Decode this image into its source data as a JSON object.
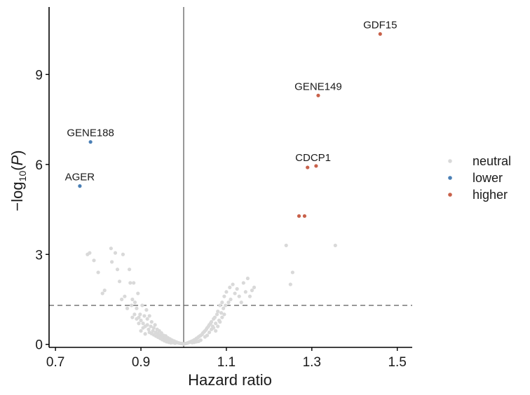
{
  "chart_data": {
    "type": "scatter",
    "xlabel": "Hazard ratio",
    "ylabel_base": "−log",
    "ylabel_sub": "10",
    "ylabel_var": "P",
    "xlim": [
      0.685,
      1.535
    ],
    "ylim": [
      -0.1,
      11.25
    ],
    "x_ticks": [
      0.7,
      0.9,
      1.1,
      1.3,
      1.5
    ],
    "x_tick_labels": [
      "0.7",
      "0.9",
      "1.1",
      "1.3",
      "1.5"
    ],
    "y_ticks": [
      0,
      3,
      6,
      9
    ],
    "y_tick_labels": [
      "0",
      "3",
      "6",
      "9"
    ],
    "vline_x": 1.0,
    "hline_y": 1.3,
    "grid": false,
    "legend_position": "right",
    "colors": {
      "neutral": "#d9d9d9",
      "lower": "#4a7fb5",
      "higher": "#c8614a",
      "vline": "#7f7f7f",
      "hline": "#6b6b6b",
      "axis": "#000000"
    },
    "series": [
      {
        "name": "neutral",
        "color": "#d9d9d9",
        "points": [
          [
            0.775,
            3.0
          ],
          [
            0.78,
            3.05
          ],
          [
            0.79,
            2.8
          ],
          [
            0.8,
            2.4
          ],
          [
            0.81,
            1.7
          ],
          [
            0.815,
            1.8
          ],
          [
            0.83,
            3.2
          ],
          [
            0.832,
            2.75
          ],
          [
            0.84,
            3.05
          ],
          [
            0.845,
            2.5
          ],
          [
            0.85,
            2.1
          ],
          [
            0.855,
            1.5
          ],
          [
            0.858,
            3.0
          ],
          [
            0.862,
            1.6
          ],
          [
            0.868,
            1.2
          ],
          [
            0.873,
            2.5
          ],
          [
            0.875,
            2.05
          ],
          [
            0.878,
            1.3
          ],
          [
            0.88,
            1.5
          ],
          [
            0.883,
            2.05
          ],
          [
            0.886,
            1.4
          ],
          [
            0.89,
            1.2
          ],
          [
            0.893,
            1.7
          ],
          [
            0.895,
            0.9
          ],
          [
            0.898,
            1.0
          ],
          [
            0.9,
            0.8
          ],
          [
            0.903,
            1.3
          ],
          [
            0.905,
            0.7
          ],
          [
            0.908,
            0.95
          ],
          [
            0.91,
            0.6
          ],
          [
            0.913,
            1.15
          ],
          [
            0.915,
            0.85
          ],
          [
            0.918,
            0.5
          ],
          [
            0.92,
            0.95
          ],
          [
            0.923,
            0.6
          ],
          [
            0.925,
            0.75
          ],
          [
            0.928,
            0.45
          ],
          [
            0.93,
            0.55
          ],
          [
            0.933,
            0.65
          ],
          [
            0.935,
            0.4
          ],
          [
            0.938,
            0.5
          ],
          [
            0.94,
            0.35
          ],
          [
            0.943,
            0.45
          ],
          [
            0.945,
            0.3
          ],
          [
            0.948,
            0.38
          ],
          [
            0.95,
            0.25
          ],
          [
            0.953,
            0.3
          ],
          [
            0.955,
            0.22
          ],
          [
            0.958,
            0.28
          ],
          [
            0.96,
            0.18
          ],
          [
            0.963,
            0.22
          ],
          [
            0.965,
            0.15
          ],
          [
            0.968,
            0.18
          ],
          [
            0.97,
            0.12
          ],
          [
            0.973,
            0.14
          ],
          [
            0.975,
            0.1
          ],
          [
            0.978,
            0.11
          ],
          [
            0.98,
            0.08
          ],
          [
            0.983,
            0.08
          ],
          [
            0.985,
            0.06
          ],
          [
            0.988,
            0.05
          ],
          [
            0.99,
            0.04
          ],
          [
            0.993,
            0.03
          ],
          [
            0.995,
            0.03
          ],
          [
            0.998,
            0.02
          ],
          [
            1.0,
            0.01
          ],
          [
            1.002,
            0.02
          ],
          [
            1.005,
            0.03
          ],
          [
            1.008,
            0.04
          ],
          [
            1.01,
            0.05
          ],
          [
            1.013,
            0.07
          ],
          [
            1.015,
            0.08
          ],
          [
            1.018,
            0.1
          ],
          [
            1.02,
            0.11
          ],
          [
            1.023,
            0.13
          ],
          [
            1.025,
            0.15
          ],
          [
            1.028,
            0.17
          ],
          [
            1.03,
            0.2
          ],
          [
            1.033,
            0.22
          ],
          [
            1.035,
            0.25
          ],
          [
            1.038,
            0.28
          ],
          [
            1.04,
            0.3
          ],
          [
            1.043,
            0.33
          ],
          [
            1.045,
            0.38
          ],
          [
            1.048,
            0.42
          ],
          [
            1.05,
            0.45
          ],
          [
            1.053,
            0.5
          ],
          [
            1.055,
            0.55
          ],
          [
            1.058,
            0.6
          ],
          [
            1.06,
            0.65
          ],
          [
            1.063,
            0.7
          ],
          [
            1.065,
            0.75
          ],
          [
            1.068,
            0.6
          ],
          [
            1.07,
            0.85
          ],
          [
            1.073,
            0.9
          ],
          [
            1.075,
            0.7
          ],
          [
            1.078,
            1.0
          ],
          [
            1.08,
            1.1
          ],
          [
            1.083,
            0.8
          ],
          [
            1.085,
            1.3
          ],
          [
            1.088,
            1.05
          ],
          [
            1.09,
            1.4
          ],
          [
            1.093,
            1.2
          ],
          [
            1.095,
            1.6
          ],
          [
            1.098,
            1.3
          ],
          [
            1.1,
            1.75
          ],
          [
            1.105,
            1.4
          ],
          [
            1.108,
            1.9
          ],
          [
            1.11,
            1.5
          ],
          [
            1.115,
            2.0
          ],
          [
            1.12,
            1.7
          ],
          [
            1.125,
            1.85
          ],
          [
            1.13,
            1.6
          ],
          [
            1.135,
            1.4
          ],
          [
            1.14,
            2.05
          ],
          [
            1.145,
            1.75
          ],
          [
            1.15,
            2.2
          ],
          [
            1.155,
            1.6
          ],
          [
            1.16,
            1.8
          ],
          [
            1.165,
            1.9
          ],
          [
            1.24,
            3.3
          ],
          [
            1.25,
            2.0
          ],
          [
            1.255,
            2.4
          ],
          [
            1.355,
            3.3
          ],
          [
            0.965,
            0.07
          ],
          [
            0.97,
            0.05
          ],
          [
            0.975,
            0.06
          ],
          [
            0.98,
            0.04
          ],
          [
            1.02,
            0.06
          ],
          [
            1.025,
            0.07
          ],
          [
            1.03,
            0.09
          ],
          [
            1.035,
            0.1
          ],
          [
            1.04,
            0.14
          ],
          [
            0.96,
            0.09
          ],
          [
            0.955,
            0.12
          ],
          [
            0.95,
            0.16
          ],
          [
            0.945,
            0.2
          ],
          [
            0.94,
            0.24
          ],
          [
            0.935,
            0.28
          ],
          [
            0.93,
            0.32
          ],
          [
            0.925,
            0.36
          ],
          [
            0.92,
            0.4
          ],
          [
            1.05,
            0.25
          ],
          [
            1.055,
            0.3
          ],
          [
            1.06,
            0.4
          ],
          [
            1.065,
            0.5
          ],
          [
            1.07,
            0.55
          ],
          [
            1.075,
            0.45
          ],
          [
            0.91,
            0.35
          ],
          [
            0.905,
            0.55
          ],
          [
            0.9,
            0.45
          ],
          [
            0.915,
            0.65
          ],
          [
            0.895,
            0.7
          ],
          [
            0.89,
            0.85
          ],
          [
            0.885,
            1.0
          ],
          [
            0.88,
            0.9
          ],
          [
            1.08,
            0.6
          ],
          [
            1.085,
            0.75
          ],
          [
            1.09,
            0.9
          ],
          [
            1.095,
            1.0
          ]
        ]
      },
      {
        "name": "lower",
        "color": "#4a7fb5",
        "points": [
          [
            0.782,
            6.75
          ],
          [
            0.757,
            5.28
          ]
        ]
      },
      {
        "name": "higher",
        "color": "#c8614a",
        "points": [
          [
            1.46,
            10.35
          ],
          [
            1.315,
            8.3
          ],
          [
            1.29,
            5.9
          ],
          [
            1.31,
            5.95
          ],
          [
            1.27,
            4.28
          ],
          [
            1.283,
            4.28
          ]
        ]
      }
    ],
    "annotations": [
      {
        "label": "GDF15",
        "x": 1.46,
        "y": 10.35
      },
      {
        "label": "GENE149",
        "x": 1.315,
        "y": 8.3
      },
      {
        "label": "GENE188",
        "x": 0.782,
        "y": 6.75
      },
      {
        "label": "CDCP1",
        "x": 1.303,
        "y": 5.92
      },
      {
        "label": "AGER",
        "x": 0.757,
        "y": 5.28
      }
    ],
    "legend": [
      {
        "label": "neutral",
        "color": "#d9d9d9"
      },
      {
        "label": "lower",
        "color": "#4a7fb5"
      },
      {
        "label": "higher",
        "color": "#c8614a"
      }
    ]
  }
}
